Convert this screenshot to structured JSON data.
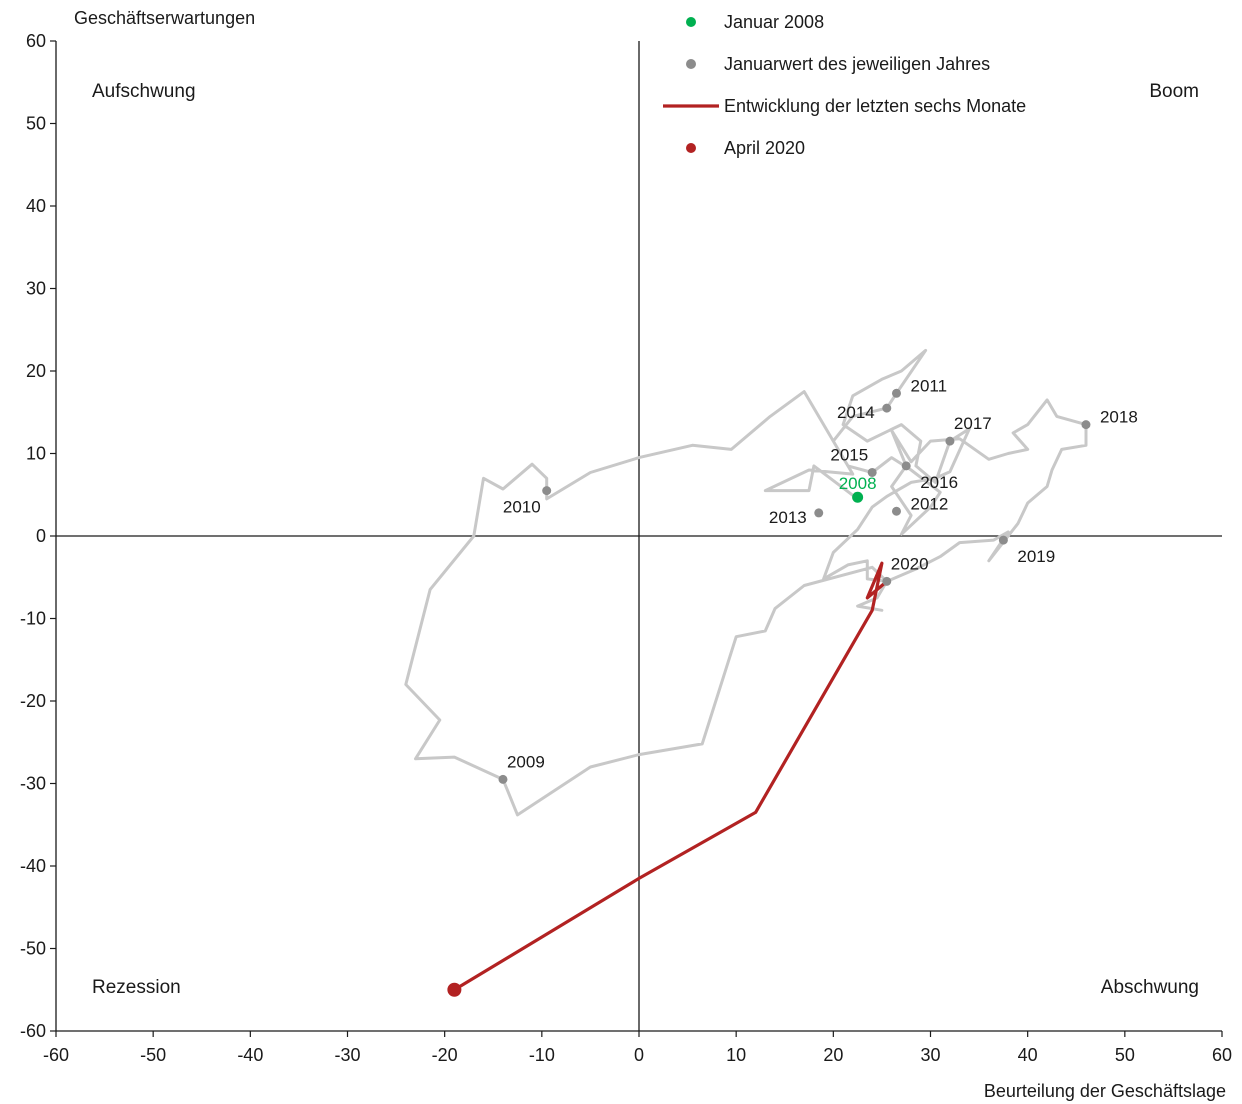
{
  "chart_data": {
    "type": "line",
    "xlabel": "Beurteilung der Geschäftslage",
    "ylabel": "Geschäftserwartungen",
    "xlim": [
      -60,
      60
    ],
    "ylim": [
      -60,
      60
    ],
    "xticks": [
      -60,
      -50,
      -40,
      -30,
      -20,
      -10,
      0,
      10,
      20,
      30,
      40,
      50,
      60
    ],
    "yticks": [
      -60,
      -50,
      -40,
      -30,
      -20,
      -10,
      0,
      10,
      20,
      30,
      40,
      50,
      60
    ],
    "grid": false,
    "legend_position": "top-center",
    "quadrants": {
      "top_left": "Aufschwung",
      "top_right": "Boom",
      "bottom_left": "Rezession",
      "bottom_right": "Abschwung"
    },
    "legend": [
      {
        "key": "start",
        "label": "Januar 2008",
        "marker": "dot",
        "color": "#00b050"
      },
      {
        "key": "january",
        "label": "Januarwert des jeweiligen Jahres",
        "marker": "dot",
        "color": "#8c8c8c"
      },
      {
        "key": "recent",
        "label": "Entwicklung der letzten sechs Monate",
        "marker": "line",
        "color": "#b22222"
      },
      {
        "key": "latest",
        "label": "April 2020",
        "marker": "dot",
        "color": "#b22222"
      }
    ],
    "series": [
      {
        "key": "history",
        "color": "#c8c8c8",
        "points": [
          [
            22.5,
            4.5
          ],
          [
            18,
            8.5
          ],
          [
            17.5,
            5.5
          ],
          [
            13,
            5.5
          ],
          [
            17.5,
            8
          ],
          [
            22,
            7.5
          ],
          [
            20,
            11.5
          ],
          [
            17,
            17.5
          ],
          [
            13.5,
            14.5
          ],
          [
            9.5,
            10.5
          ],
          [
            5.5,
            11
          ],
          [
            0,
            9.5
          ],
          [
            -5,
            7.7
          ],
          [
            -9.5,
            4.5
          ],
          [
            -9.5,
            7
          ],
          [
            -11,
            8.7
          ],
          [
            -14,
            5.7
          ],
          [
            -16,
            7
          ],
          [
            -17,
            0
          ],
          [
            -21.5,
            -6.5
          ],
          [
            -24,
            -18
          ],
          [
            -20.5,
            -22.3
          ],
          [
            -23,
            -27
          ],
          [
            -19,
            -26.8
          ],
          [
            -14,
            -29.5
          ],
          [
            -12.5,
            -33.8
          ],
          [
            -5,
            -28
          ],
          [
            0,
            -26.5
          ],
          [
            6.5,
            -25.2
          ],
          [
            10,
            -12.2
          ],
          [
            13,
            -11.5
          ],
          [
            14,
            -8.8
          ],
          [
            17,
            -6
          ],
          [
            24,
            -3.8
          ],
          [
            25.5,
            -5.5
          ],
          [
            28.5,
            -4
          ],
          [
            31,
            -2.5
          ],
          [
            33,
            -0.8
          ],
          [
            36.5,
            -0.5
          ],
          [
            38,
            0.5
          ],
          [
            36,
            -3
          ],
          [
            39,
            1.5
          ],
          [
            40,
            4
          ],
          [
            42,
            6
          ],
          [
            42.5,
            8
          ],
          [
            43.5,
            10.5
          ],
          [
            46,
            11
          ],
          [
            46,
            13.5
          ],
          [
            43,
            14.5
          ],
          [
            42,
            16.5
          ],
          [
            40,
            13.5
          ],
          [
            38.5,
            12.5
          ],
          [
            40,
            10.5
          ],
          [
            38,
            10
          ],
          [
            36,
            9.3
          ],
          [
            33,
            11.8
          ],
          [
            30,
            11.5
          ],
          [
            28,
            9
          ],
          [
            26,
            12.8
          ],
          [
            27.5,
            8.5
          ],
          [
            26,
            6
          ],
          [
            28,
            2.5
          ],
          [
            27,
            0.2
          ],
          [
            30,
            3.5
          ],
          [
            31,
            5.3
          ],
          [
            28,
            8
          ],
          [
            26,
            9.5
          ],
          [
            24,
            7.7
          ],
          [
            21.5,
            8.5
          ],
          [
            20,
            11.5
          ],
          [
            22,
            14.5
          ],
          [
            25.5,
            15.5
          ],
          [
            26.5,
            17.3
          ],
          [
            29.5,
            22.5
          ],
          [
            27,
            20
          ],
          [
            25,
            19
          ],
          [
            22,
            17
          ],
          [
            21,
            13.5
          ],
          [
            23.5,
            11.5
          ],
          [
            27,
            13.5
          ],
          [
            29,
            11.5
          ],
          [
            28.5,
            8.5
          ],
          [
            30.5,
            6.5
          ],
          [
            32,
            11.5
          ],
          [
            34,
            13
          ],
          [
            32,
            7.8
          ],
          [
            30.5,
            7
          ],
          [
            28,
            6.5
          ],
          [
            25.5,
            4.8
          ],
          [
            24,
            3.5
          ],
          [
            22.5,
            0.8
          ],
          [
            20,
            -2
          ],
          [
            19,
            -5.2
          ],
          [
            21.5,
            -3.5
          ],
          [
            23.5,
            -3
          ],
          [
            23.5,
            -5.2
          ],
          [
            25.5,
            -5.5
          ],
          [
            24.5,
            -7.5
          ],
          [
            22.5,
            -8.5
          ],
          [
            25,
            -9
          ]
        ]
      },
      {
        "key": "recent",
        "color": "#b22222",
        "points": [
          [
            25.5,
            -5.5
          ],
          [
            23.5,
            -7.5
          ],
          [
            25,
            -3.3
          ],
          [
            24,
            -9
          ],
          [
            12,
            -33.5
          ],
          [
            0,
            -41.5
          ],
          [
            -19,
            -55
          ]
        ]
      }
    ],
    "points": [
      {
        "label": "2008",
        "x": 22.5,
        "y": 4.7,
        "color": "#00b050",
        "anchor": "top-center"
      },
      {
        "label": "2009",
        "x": -14,
        "y": -29.5,
        "color": "#8c8c8c",
        "anchor": "top-right"
      },
      {
        "label": "2010",
        "x": -9.5,
        "y": 5.5,
        "color": "#8c8c8c",
        "anchor": "bottom-left"
      },
      {
        "label": "2011",
        "x": 26.5,
        "y": 17.3,
        "color": "#8c8c8c",
        "anchor": "right"
      },
      {
        "label": "2012",
        "x": 26.5,
        "y": 3,
        "color": "#8c8c8c",
        "anchor": "right"
      },
      {
        "label": "2013",
        "x": 18.5,
        "y": 2.8,
        "color": "#8c8c8c",
        "anchor": "left"
      },
      {
        "label": "2014",
        "x": 25.5,
        "y": 15.5,
        "color": "#8c8c8c",
        "anchor": "left"
      },
      {
        "label": "2015",
        "x": 24,
        "y": 7.7,
        "color": "#8c8c8c",
        "anchor": "top-left"
      },
      {
        "label": "2016",
        "x": 27.5,
        "y": 8.5,
        "color": "#8c8c8c",
        "anchor": "bottom-right"
      },
      {
        "label": "2017",
        "x": 32,
        "y": 11.5,
        "color": "#8c8c8c",
        "anchor": "top-right"
      },
      {
        "label": "2018",
        "x": 46,
        "y": 13.5,
        "color": "#8c8c8c",
        "anchor": "right"
      },
      {
        "label": "2019",
        "x": 37.5,
        "y": -0.5,
        "color": "#8c8c8c",
        "anchor": "bottom-right"
      },
      {
        "label": "2020",
        "x": 25.5,
        "y": -5.5,
        "color": "#8c8c8c",
        "anchor": "top-right"
      }
    ],
    "latest_point": {
      "x": -19,
      "y": -55,
      "color": "#b22222"
    }
  }
}
